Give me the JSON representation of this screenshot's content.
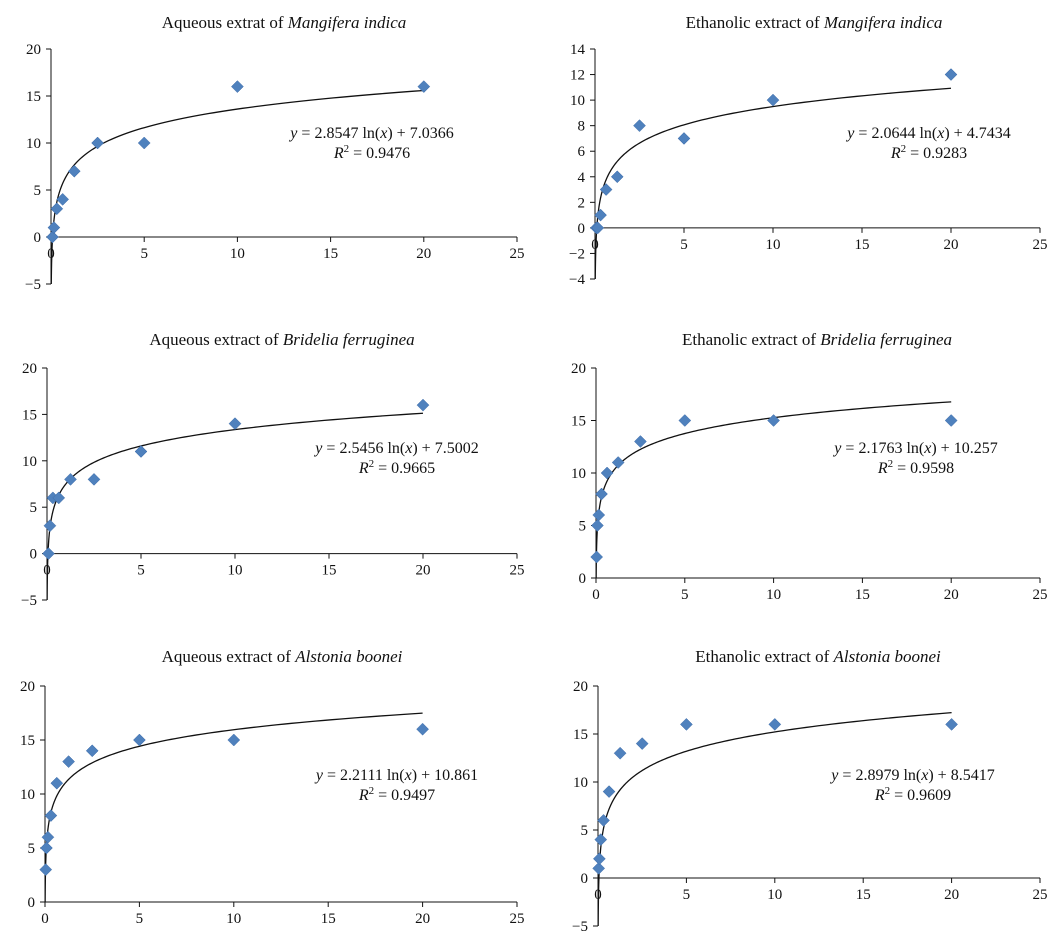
{
  "chart_data": [
    {
      "type": "scatter",
      "title": {
        "prefix": "Aqueous extrat of ",
        "species": "Mangifera indica"
      },
      "xlim": [
        0,
        25
      ],
      "ylim": [
        -5,
        20
      ],
      "xticks": [
        "0",
        "5",
        "10",
        "15",
        "20",
        "25"
      ],
      "yticks": [
        "−5",
        "0",
        "5",
        "10",
        "15",
        "20"
      ],
      "x": [
        0.078,
        0.156,
        0.3125,
        0.625,
        1.25,
        2.5,
        5,
        10,
        20
      ],
      "y": [
        0,
        1,
        3,
        4,
        7,
        10,
        10,
        16,
        16
      ],
      "trendline": {
        "type": "log",
        "a": 2.8547,
        "b": 7.0366
      },
      "equation": {
        "slope": "2.8547",
        "intercept": "7.0366",
        "r2": "0.9476"
      }
    },
    {
      "type": "scatter",
      "title": {
        "prefix": "Ethanolic extract of ",
        "species": "Mangifera indica"
      },
      "xlim": [
        0,
        25
      ],
      "ylim": [
        -4,
        14
      ],
      "xticks": [
        "0",
        "5",
        "10",
        "15",
        "20",
        "25"
      ],
      "yticks": [
        "−4",
        "−2",
        "0",
        "2",
        "4",
        "6",
        "8",
        "10",
        "12",
        "14"
      ],
      "x": [
        0.078,
        0.156,
        0.3125,
        0.625,
        1.25,
        2.5,
        5,
        10,
        20
      ],
      "y": [
        0,
        0,
        1,
        3,
        4,
        8,
        7,
        10,
        12
      ],
      "trendline": {
        "type": "log",
        "a": 2.0644,
        "b": 4.7434
      },
      "equation": {
        "slope": "2.0644",
        "intercept": "4.7434",
        "r2": "0.9283"
      }
    },
    {
      "type": "scatter",
      "title": {
        "prefix": "Aqueous extract of ",
        "species": "Bridelia  ferruginea"
      },
      "xlim": [
        0,
        25
      ],
      "ylim": [
        -5,
        20
      ],
      "xticks": [
        "0",
        "5",
        "10",
        "15",
        "20",
        "25"
      ],
      "yticks": [
        "−5",
        "0",
        "5",
        "10",
        "15",
        "20"
      ],
      "x": [
        0.078,
        0.156,
        0.3125,
        0.625,
        1.25,
        2.5,
        5,
        10,
        20
      ],
      "y": [
        0,
        3,
        6,
        6,
        8,
        8,
        11,
        14,
        16
      ],
      "trendline": {
        "type": "log",
        "a": 2.5456,
        "b": 7.5002
      },
      "equation": {
        "slope": "2.5456",
        "intercept": "7.5002",
        "r2": "0.9665"
      }
    },
    {
      "type": "scatter",
      "title": {
        "prefix": "Ethanolic extract of ",
        "species": "Bridelia  ferruginea"
      },
      "xlim": [
        0,
        25
      ],
      "ylim": [
        0,
        20
      ],
      "xticks": [
        "0",
        "5",
        "10",
        "15",
        "20",
        "25"
      ],
      "yticks": [
        "0",
        "5",
        "10",
        "15",
        "20"
      ],
      "x": [
        0.039,
        0.078,
        0.156,
        0.3125,
        0.625,
        1.25,
        2.5,
        5,
        10,
        20
      ],
      "y": [
        2,
        5,
        6,
        8,
        10,
        11,
        13,
        15,
        15,
        15
      ],
      "trendline": {
        "type": "log",
        "a": 2.1763,
        "b": 10.257
      },
      "equation": {
        "slope": "2.1763",
        "intercept": "10.257",
        "r2": "0.9598"
      }
    },
    {
      "type": "scatter",
      "title": {
        "prefix": "Aqueous extract of ",
        "species": "Alstonia boonei"
      },
      "xlim": [
        0,
        25
      ],
      "ylim": [
        0,
        20
      ],
      "xticks": [
        "0",
        "5",
        "10",
        "15",
        "20",
        "25"
      ],
      "yticks": [
        "0",
        "5",
        "10",
        "15",
        "20"
      ],
      "x": [
        0.039,
        0.078,
        0.156,
        0.3125,
        0.625,
        1.25,
        2.5,
        5,
        10,
        20
      ],
      "y": [
        3,
        5,
        6,
        8,
        11,
        13,
        14,
        15,
        15,
        16
      ],
      "trendline": {
        "type": "log",
        "a": 2.2111,
        "b": 10.861
      },
      "equation": {
        "slope": "2.2111",
        "intercept": "10.861",
        "r2": "0.9497"
      }
    },
    {
      "type": "scatter",
      "title": {
        "prefix": "Ethanolic extract of ",
        "species": "Alstonia boonei"
      },
      "xlim": [
        0,
        25
      ],
      "ylim": [
        -5,
        20
      ],
      "xticks": [
        "0",
        "5",
        "10",
        "15",
        "20",
        "25"
      ],
      "yticks": [
        "−5",
        "0",
        "5",
        "10",
        "15",
        "20"
      ],
      "x": [
        0.039,
        0.078,
        0.156,
        0.3125,
        0.625,
        1.25,
        2.5,
        5,
        10,
        20
      ],
      "y": [
        1,
        2,
        4,
        6,
        9,
        13,
        14,
        16,
        16,
        16
      ],
      "trendline": {
        "type": "log",
        "a": 2.8979,
        "b": 8.5417
      },
      "equation": {
        "slope": "2.8979",
        "intercept": "8.5417",
        "r2": "0.9609"
      }
    }
  ]
}
